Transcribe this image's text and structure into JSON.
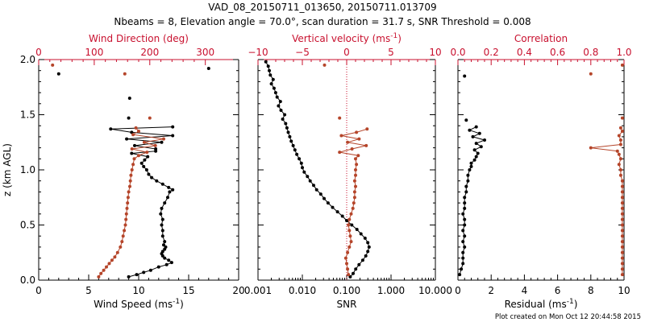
{
  "colors": {
    "black": "#000000",
    "red": "#c8102e",
    "brown": "#b5452a",
    "white": "#ffffff"
  },
  "title": {
    "line1": "VAD_08_20150711_013650, 20150711.013709",
    "line2": "Nbeams = 8, Elevation angle = 70.0°, scan duration = 31.7 s, SNR Threshold = 0.008"
  },
  "footer": "Plot created on Mon Oct 12 20:44:58 2015",
  "chart_data": [
    {
      "type": "line",
      "panel": "wind",
      "ylabel": "z (km AGL)",
      "ylim": [
        0,
        2.0
      ],
      "yticks": [
        "0.0",
        "0.5",
        "1.0",
        "1.5",
        "2.0"
      ],
      "xlabel": "Wind Speed (ms",
      "xlabel_sup": "-1",
      "xlabel_end": ")",
      "xlim": [
        0,
        20
      ],
      "xticks": [
        "0",
        "5",
        "10",
        "15",
        "20"
      ],
      "top_xlabel": "Wind Direction (deg)",
      "top_xlim": [
        0,
        360
      ],
      "top_xticks": [
        "0",
        "100",
        "200",
        "300"
      ],
      "series": [
        {
          "color": "black",
          "axis": "bottom",
          "z": [
            0.03,
            0.05,
            0.07,
            0.09,
            0.12,
            0.14,
            0.16,
            0.18,
            0.2,
            0.22,
            0.24,
            0.26,
            0.28,
            0.3,
            0.32,
            0.35,
            0.4,
            0.45,
            0.5,
            0.55,
            0.6,
            0.65,
            0.7,
            0.75,
            0.8,
            0.82,
            0.84,
            0.87,
            0.9,
            0.93,
            0.96,
            1.0,
            1.03,
            1.06,
            1.09,
            1.12,
            1.15,
            1.17,
            1.19,
            1.22,
            1.25,
            1.28,
            1.31,
            1.34,
            1.37,
            1.39
          ],
          "values": [
            9.0,
            9.8,
            10.5,
            11.2,
            12.0,
            12.8,
            13.3,
            13.0,
            12.6,
            12.4,
            12.3,
            12.4,
            12.6,
            12.7,
            12.5,
            12.6,
            12.4,
            12.4,
            12.3,
            12.4,
            12.2,
            12.3,
            12.6,
            12.9,
            13.1,
            13.4,
            13.0,
            12.4,
            11.8,
            11.3,
            11.0,
            10.8,
            10.5,
            10.3,
            10.6,
            10.9,
            9.3,
            11.7,
            11.7,
            9.6,
            12.3,
            8.8,
            13.4,
            9.3,
            7.2,
            13.4
          ]
        },
        {
          "color": "black",
          "axis": "bottom",
          "markers_only": true,
          "z": [
            1.47,
            1.65,
            1.87,
            1.92
          ],
          "values": [
            9.0,
            9.1,
            2.0,
            17.0
          ]
        },
        {
          "color": "brown",
          "axis": "top",
          "z": [
            0.03,
            0.06,
            0.09,
            0.12,
            0.15,
            0.18,
            0.21,
            0.25,
            0.3,
            0.35,
            0.4,
            0.45,
            0.5,
            0.55,
            0.6,
            0.65,
            0.7,
            0.75,
            0.8,
            0.85,
            0.9,
            0.95,
            1.0,
            1.05,
            1.1,
            1.13,
            1.16,
            1.19,
            1.22,
            1.25,
            1.28,
            1.32,
            1.35,
            1.38
          ],
          "values": [
            108,
            112,
            117,
            122,
            127,
            132,
            137,
            142,
            147,
            150,
            152,
            154,
            156,
            157,
            158,
            159,
            160,
            161,
            162,
            164,
            165,
            166,
            168,
            170,
            172,
            180,
            195,
            168,
            210,
            190,
            225,
            170,
            180,
            175
          ]
        },
        {
          "color": "brown",
          "axis": "top",
          "markers_only": true,
          "z": [
            1.47,
            1.87,
            1.95
          ],
          "values": [
            200,
            155,
            25
          ]
        }
      ]
    },
    {
      "type": "line",
      "panel": "vertical",
      "ylim": [
        0,
        2.0
      ],
      "xlabel": "SNR",
      "xscale": "log",
      "xlim": [
        0.001,
        10
      ],
      "xticks": [
        "0.001",
        "0.010",
        "0.100",
        "1.000",
        "10.000"
      ],
      "top_xlabel": "Vertical velocity (ms",
      "top_xlabel_sup": "-1",
      "top_xlabel_end": ")",
      "top_xlim": [
        -10,
        10
      ],
      "top_xticks": [
        "−10",
        "−5",
        "0",
        "5",
        "10"
      ],
      "series": [
        {
          "color": "black",
          "axis": "bottom",
          "z": [
            0.03,
            0.06,
            0.1,
            0.14,
            0.18,
            0.22,
            0.26,
            0.3,
            0.34,
            0.38,
            0.42,
            0.46,
            0.5,
            0.54,
            0.58,
            0.62,
            0.66,
            0.7,
            0.74,
            0.78,
            0.82,
            0.86,
            0.9,
            0.94,
            0.98,
            1.02,
            1.06,
            1.1,
            1.14,
            1.18,
            1.22,
            1.26,
            1.3,
            1.34,
            1.38,
            1.42,
            1.46,
            1.5,
            1.54,
            1.58,
            1.62,
            1.66,
            1.7,
            1.74,
            1.78,
            1.82,
            1.86,
            1.9,
            1.94,
            1.98
          ],
          "values": [
            0.12,
            0.14,
            0.16,
            0.19,
            0.23,
            0.27,
            0.3,
            0.32,
            0.3,
            0.26,
            0.21,
            0.17,
            0.13,
            0.1,
            0.08,
            0.062,
            0.048,
            0.038,
            0.031,
            0.026,
            0.021,
            0.018,
            0.015,
            0.013,
            0.011,
            0.01,
            0.0095,
            0.0085,
            0.0075,
            0.0068,
            0.0062,
            0.0056,
            0.0052,
            0.0048,
            0.0045,
            0.0042,
            0.0036,
            0.004,
            0.0033,
            0.0029,
            0.0032,
            0.0027,
            0.0025,
            0.0023,
            0.002,
            0.0022,
            0.0019,
            0.0018,
            0.0017,
            0.0015
          ]
        },
        {
          "color": "brown",
          "axis": "top",
          "z": [
            0.05,
            0.1,
            0.15,
            0.2,
            0.25,
            0.3,
            0.35,
            0.4,
            0.45,
            0.5,
            0.55,
            0.6,
            0.65,
            0.7,
            0.75,
            0.8,
            0.85,
            0.9,
            0.95,
            1.0,
            1.05,
            1.1,
            1.13,
            1.16,
            1.19,
            1.22,
            1.25,
            1.28,
            1.31,
            1.34,
            1.37
          ],
          "values": [
            0.2,
            0.1,
            0.0,
            -0.1,
            0.1,
            0.3,
            0.5,
            0.4,
            0.3,
            0.2,
            0.3,
            0.5,
            0.7,
            0.8,
            0.9,
            0.9,
            1.0,
            0.9,
            1.0,
            1.0,
            1.1,
            1.0,
            1.3,
            -0.8,
            0.6,
            2.2,
            0.1,
            1.4,
            -0.6,
            1.1,
            2.3
          ]
        },
        {
          "color": "brown",
          "axis": "top",
          "markers_only": true,
          "z": [
            1.47,
            1.95
          ],
          "values": [
            -0.8,
            -2.5
          ]
        }
      ]
    },
    {
      "type": "line",
      "panel": "correlation",
      "ylim": [
        0,
        2.0
      ],
      "xlabel": "Residual (ms",
      "xlabel_sup": "-1",
      "xlabel_end": ")",
      "xlim": [
        0,
        10
      ],
      "xticks": [
        "0",
        "2",
        "4",
        "6",
        "8",
        "10"
      ],
      "top_xlabel": "Correlation",
      "top_xlim": [
        0,
        1.0
      ],
      "top_xticks": [
        "0.0",
        "0.2",
        "0.4",
        "0.6",
        "0.8",
        "1.0"
      ],
      "series": [
        {
          "color": "black",
          "axis": "bottom",
          "z": [
            0.05,
            0.1,
            0.15,
            0.2,
            0.25,
            0.3,
            0.35,
            0.4,
            0.45,
            0.5,
            0.55,
            0.6,
            0.65,
            0.7,
            0.75,
            0.8,
            0.85,
            0.9,
            0.95,
            1.0,
            1.03,
            1.06,
            1.09,
            1.12,
            1.15,
            1.18,
            1.21,
            1.24,
            1.27,
            1.3,
            1.33,
            1.36,
            1.39
          ],
          "values": [
            0.1,
            0.2,
            0.3,
            0.3,
            0.3,
            0.4,
            0.3,
            0.4,
            0.3,
            0.4,
            0.4,
            0.3,
            0.4,
            0.4,
            0.4,
            0.5,
            0.5,
            0.6,
            0.6,
            0.7,
            0.8,
            0.8,
            1.0,
            1.1,
            1.2,
            1.0,
            1.4,
            1.1,
            1.6,
            0.9,
            1.3,
            0.7,
            1.1
          ]
        },
        {
          "color": "black",
          "axis": "bottom",
          "markers_only": true,
          "z": [
            1.45,
            1.85
          ],
          "values": [
            0.5,
            0.4
          ]
        },
        {
          "color": "brown",
          "axis": "top",
          "z": [
            0.05,
            0.1,
            0.15,
            0.2,
            0.25,
            0.3,
            0.35,
            0.4,
            0.45,
            0.5,
            0.55,
            0.6,
            0.65,
            0.7,
            0.75,
            0.8,
            0.85,
            0.9,
            0.95,
            1.0,
            1.05,
            1.1,
            1.14,
            1.17,
            1.2,
            1.23,
            1.27,
            1.31,
            1.35,
            1.38
          ],
          "values": [
            0.99,
            0.99,
            0.99,
            0.99,
            0.99,
            0.99,
            0.99,
            0.99,
            0.99,
            0.99,
            0.99,
            0.99,
            0.99,
            0.99,
            0.99,
            0.99,
            0.99,
            0.99,
            0.98,
            0.98,
            0.97,
            0.98,
            0.97,
            0.96,
            0.8,
            0.98,
            0.98,
            0.97,
            0.99,
            0.98
          ]
        },
        {
          "color": "brown",
          "axis": "top",
          "markers_only": true,
          "z": [
            1.47,
            1.87,
            1.95
          ],
          "values": [
            0.99,
            0.8,
            0.99
          ]
        }
      ]
    }
  ]
}
